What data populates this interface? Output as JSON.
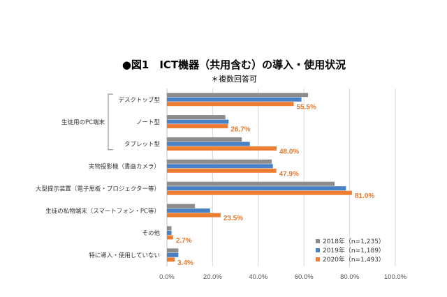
{
  "chart_data": {
    "type": "bar",
    "orientation": "horizontal",
    "title": "●図1　ICT機器（共用含む）の導入・使用状況",
    "subtitle": "＊複数回答可",
    "group_label": "生徒用のPC端末",
    "categories": [
      "デスクトップ型",
      "ノート型",
      "タブレット型",
      "実物投影機（書画カメラ）",
      "大型提示装置（電子黒板・プロジェクター等）",
      "生徒の私物端末（スマートフォン・PC等）",
      "その他",
      "特に導入・使用していない"
    ],
    "series": [
      {
        "name": "2018年（n=1,235）",
        "color": "#8c8c8c",
        "values": [
          61.8,
          25.6,
          32.8,
          45.9,
          73.4,
          12.3,
          2.0,
          5.0
        ]
      },
      {
        "name": "2019年（n=1,189）",
        "color": "#4a80c4",
        "values": [
          58.9,
          27.0,
          36.3,
          46.4,
          78.4,
          18.9,
          2.0,
          5.0
        ]
      },
      {
        "name": "2020年（n=1,493）",
        "color": "#ed7d31",
        "values": [
          55.5,
          26.7,
          48.0,
          47.9,
          81.0,
          23.5,
          2.7,
          3.4
        ]
      }
    ],
    "data_labels": [
      "55.5%",
      "26.7%",
      "48.0%",
      "47.9%",
      "81.0%",
      "23.5%",
      "2.7%",
      "3.4%"
    ],
    "data_label_color": "#e07b32",
    "x_ticks": [
      "0.0%",
      "20.0%",
      "40.0%",
      "60.0%",
      "80.0%",
      "100.0%"
    ],
    "xlim": [
      0,
      100
    ],
    "grid": true,
    "legend_position": "bottom-right"
  }
}
